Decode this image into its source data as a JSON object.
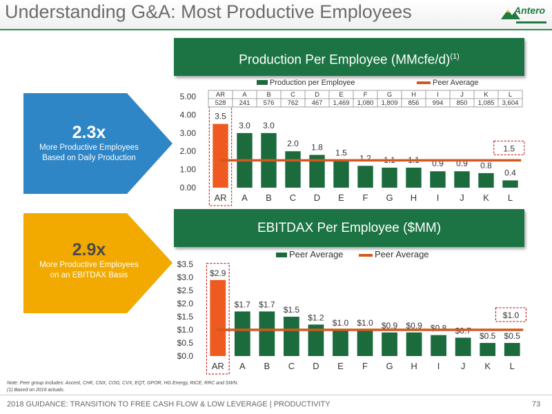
{
  "page": {
    "title": "Understanding G&A: Most Productive Employees",
    "logo_text": "Antero",
    "footer": "2018 GUIDANCE: TRANSITION TO FREE CASH FLOW & LOW LEVERAGE | PRODUCTIVITY",
    "page_number": "73",
    "note_line1": "Note: Peer group includes: Ascent, CHK, CNX, COG, CVX, EQT, GPOR, HG Energy, RICE, RRC and SWN.",
    "note_line2": "(1)    Based on 2016 actuals."
  },
  "callouts": [
    {
      "multiple": "2.3x",
      "line1": "More Productive Employees",
      "line2": "Based on Daily Production",
      "color": "#2f86c6"
    },
    {
      "multiple": "2.9x",
      "line1": "More Productive Employees",
      "line2": "on an EBITDAX Basis",
      "color": "#f2a900"
    }
  ],
  "colors": {
    "ar_bar": "#ee5a1f",
    "peer_bar": "#1b6b3d",
    "avg_line": "#d2581f",
    "panel": "#1c7444"
  },
  "chart_data": [
    {
      "type": "bar",
      "title": "Production Per Employee (MMcfe/d)",
      "title_sup": "(1)",
      "legend": [
        "Production per Employee",
        "Peer Average"
      ],
      "categories": [
        "AR",
        "A",
        "B",
        "C",
        "D",
        "E",
        "F",
        "G",
        "H",
        "I",
        "J",
        "K",
        "L"
      ],
      "values": [
        3.5,
        3.0,
        3.0,
        2.0,
        1.8,
        1.5,
        1.2,
        1.1,
        1.1,
        0.9,
        0.9,
        0.8,
        0.4
      ],
      "value_labels": [
        "3.5",
        "3.0",
        "3.0",
        "2.0",
        "1.8",
        "1.5",
        "1.2",
        "1.1",
        "1.1",
        "0.9",
        "0.9",
        "0.8",
        "0.4"
      ],
      "peer_average": 1.5,
      "peer_average_label": "1.5",
      "yticks": [
        "0.00",
        "1.00",
        "2.00",
        "3.00",
        "4.00",
        "5.00"
      ],
      "ylim": [
        0,
        5
      ],
      "table_header": [
        "AR",
        "A",
        "B",
        "C",
        "D",
        "E",
        "F",
        "G",
        "H",
        "I",
        "J",
        "K",
        "L"
      ],
      "table_values": [
        "528",
        "241",
        "576",
        "762",
        "467",
        "1,469",
        "1,080",
        "1,809",
        "856",
        "994",
        "850",
        "1,085",
        "3,604"
      ]
    },
    {
      "type": "bar",
      "title": "EBITDAX Per Employee ($MM)",
      "legend": [
        "Peer Average",
        "Peer Average"
      ],
      "categories": [
        "AR",
        "A",
        "B",
        "C",
        "D",
        "E",
        "F",
        "G",
        "H",
        "I",
        "J",
        "K",
        "L"
      ],
      "values": [
        2.9,
        1.7,
        1.7,
        1.5,
        1.2,
        1.0,
        1.0,
        0.9,
        0.9,
        0.8,
        0.7,
        0.5,
        0.5
      ],
      "value_labels": [
        "$2.9",
        "$1.7",
        "$1.7",
        "$1.5",
        "$1.2",
        "$1.0",
        "$1.0",
        "$0.9",
        "$0.9",
        "$0.8",
        "$0.7",
        "$0.5",
        "$0.5"
      ],
      "peer_average": 1.0,
      "peer_average_label": "$1.0",
      "yticks": [
        "$0.0",
        "$0.5",
        "$1.0",
        "$1.5",
        "$2.0",
        "$2.5",
        "$3.0",
        "$3.5"
      ],
      "ylim": [
        0,
        3.5
      ]
    }
  ]
}
